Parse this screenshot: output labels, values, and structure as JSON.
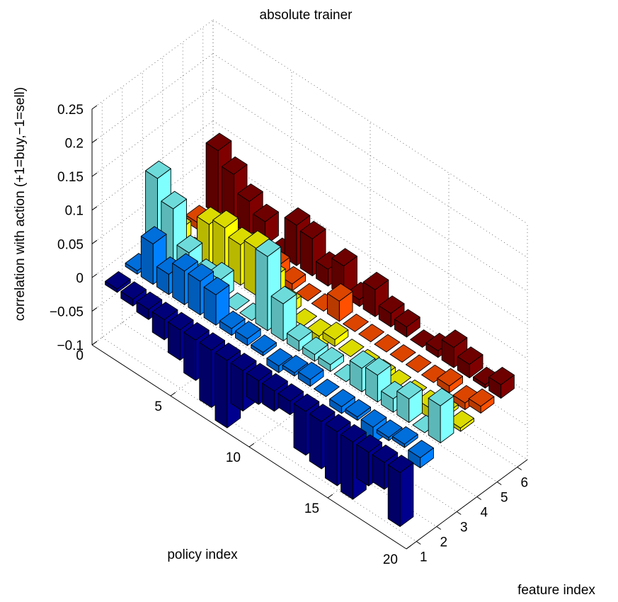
{
  "chart_data": {
    "type": "bar3",
    "title": "absolute trainer",
    "xlabel": "feature index",
    "ylabel": "policy index",
    "zlabel": "correlation with action (+1=buy,−1=sell)",
    "x_ticks": [
      "1",
      "2",
      "3",
      "4",
      "5",
      "6"
    ],
    "y_ticks": [
      "0",
      "5",
      "10",
      "15",
      "20"
    ],
    "z_ticks": [
      "−0.1",
      "−0.05",
      "0",
      "0.05",
      "0.1",
      "0.15",
      "0.2",
      "0.25"
    ],
    "xlim": [
      0.5,
      6.5
    ],
    "ylim": [
      0,
      20
    ],
    "zlim": [
      -0.1,
      0.25
    ],
    "grid": true,
    "colormap": "jet",
    "series_colors": [
      "#00008f",
      "#0080ff",
      "#80ffff",
      "#ffff00",
      "#ff5000",
      "#800000"
    ],
    "policy_index": [
      1,
      2,
      3,
      4,
      5,
      6,
      7,
      8,
      9,
      10,
      11,
      12,
      13,
      14,
      15,
      16,
      17,
      18,
      19
    ],
    "series": [
      {
        "name": "1",
        "values": [
          -0.005,
          -0.01,
          -0.015,
          -0.03,
          -0.045,
          -0.06,
          -0.085,
          -0.1,
          -0.06,
          -0.035,
          -0.03,
          -0.02,
          -0.065,
          -0.07,
          -0.08,
          -0.085,
          -0.05,
          -0.04,
          -0.08
        ]
      },
      {
        "name": "2",
        "values": [
          0.005,
          0.06,
          0.03,
          0.05,
          0.05,
          0.045,
          0.01,
          0.01,
          0.005,
          -0.01,
          0.005,
          0.01,
          0.0,
          -0.01,
          -0.005,
          -0.025,
          -0.005,
          0.005,
          -0.015
        ]
      },
      {
        "name": "3",
        "values": [
          0.12,
          0.09,
          0.04,
          0.02,
          0.03,
          0.0,
          0.0,
          0.11,
          0.055,
          0.015,
          0.01,
          0.01,
          0.0,
          0.035,
          0.04,
          0.02,
          0.035,
          0.0,
          0.055
        ]
      },
      {
        "name": "4",
        "values": [
          0.02,
          0.0,
          0.06,
          0.07,
          0.06,
          0.07,
          0.04,
          0.015,
          0.0,
          -0.02,
          0.01,
          0.0,
          0.0,
          -0.02,
          0.0,
          0.0,
          -0.015,
          0.005,
          -0.005
        ]
      },
      {
        "name": "5",
        "values": [
          0.01,
          0.005,
          0.015,
          0.0,
          0.0,
          0.02,
          0.01,
          0.0,
          0.0,
          0.03,
          0.0,
          0.0,
          0.0,
          0.0,
          0.0,
          0.0,
          0.01,
          -0.01,
          0.01
        ]
      },
      {
        "name": "6",
        "values": [
          0.095,
          0.075,
          0.05,
          0.035,
          0.0,
          0.06,
          0.055,
          0.025,
          0.045,
          0.01,
          0.04,
          0.02,
          0.015,
          0.0,
          0.01,
          0.03,
          0.02,
          0.005,
          0.02
        ]
      }
    ]
  }
}
